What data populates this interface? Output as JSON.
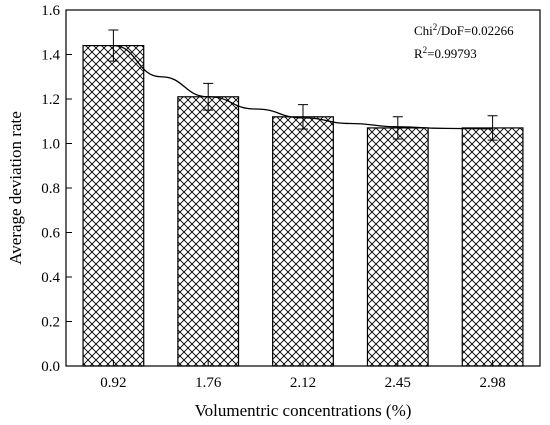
{
  "chart_data": {
    "type": "bar",
    "categories": [
      "0.92",
      "1.76",
      "2.12",
      "2.45",
      "2.98"
    ],
    "values": [
      1.44,
      1.21,
      1.12,
      1.07,
      1.07
    ],
    "error": [
      0.07,
      0.06,
      0.055,
      0.05,
      0.055
    ],
    "fit_curve": {
      "x_index": [
        0,
        0.5,
        1,
        1.5,
        2,
        2.5,
        3,
        3.5,
        4
      ],
      "y": [
        1.44,
        1.3,
        1.21,
        1.155,
        1.115,
        1.09,
        1.075,
        1.068,
        1.066
      ]
    },
    "xlabel": "Volumentric concentrations (%)",
    "ylabel": "Average deviation rate",
    "ylim": [
      0.0,
      1.6
    ],
    "yticks": [
      "0.0",
      "0.2",
      "0.4",
      "0.6",
      "0.8",
      "1.0",
      "1.2",
      "1.4",
      "1.6"
    ],
    "annotations": {
      "chi_label": "Chi",
      "chi_sup": "2",
      "chi_rest": "/DoF=0.02266",
      "r_label": "R",
      "r_sup": "2",
      "r_rest": "=0.99793"
    },
    "bar_fill": "crosshatch",
    "colors": {
      "bar_edge": "#000000",
      "hatch": "#000000",
      "curve": "#000000"
    }
  }
}
